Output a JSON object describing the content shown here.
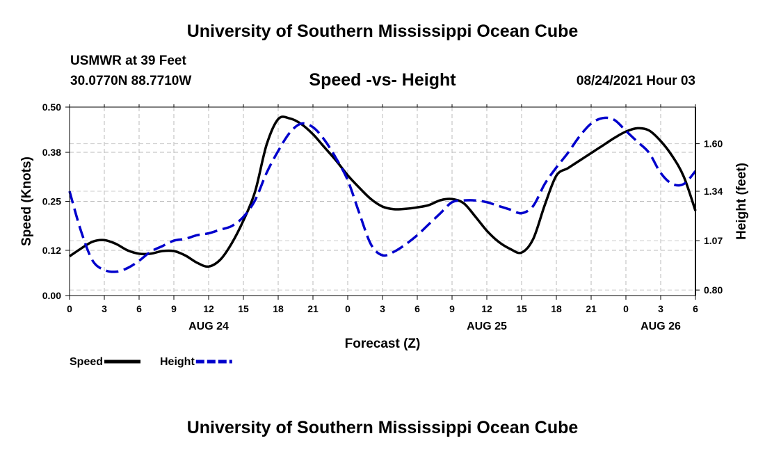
{
  "header": {
    "title": "University of Southern Mississippi Ocean Cube",
    "station": "USMWR at 39 Feet",
    "coords": "30.0770N  88.7710W",
    "subtitle": "Speed -vs- Height",
    "datetime": "08/24/2021 Hour 03"
  },
  "footer": {
    "title": "University of Southern Mississippi Ocean Cube"
  },
  "chart_data": {
    "type": "line",
    "title": "Speed -vs- Height",
    "xlabel": "Forecast (Z)",
    "ylabel_left": "Speed (Knots)",
    "ylabel_right": "Height (feet)",
    "ylim_left": [
      0,
      0.5
    ],
    "ylim_right": [
      0.77,
      1.8
    ],
    "grid": true,
    "x_hours": [
      0,
      3,
      6,
      9,
      12,
      15,
      18,
      21,
      24,
      27,
      30,
      33,
      36,
      39,
      42,
      45,
      48,
      51,
      54
    ],
    "x_tick_labels": [
      "0",
      "3",
      "6",
      "9",
      "12",
      "15",
      "18",
      "21",
      "0",
      "3",
      "6",
      "9",
      "12",
      "15",
      "18",
      "21",
      "0",
      "3",
      "6"
    ],
    "date_labels": [
      {
        "hour": 12,
        "label": "AUG 24"
      },
      {
        "hour": 36,
        "label": "AUG 25"
      },
      {
        "hour": 51,
        "label": "AUG 26"
      }
    ],
    "left_ticks": [
      0.0,
      0.12,
      0.25,
      0.38,
      0.5
    ],
    "left_tick_labels": [
      "0.00",
      "0.12",
      "0.25",
      "0.38",
      "0.50"
    ],
    "right_ticks": [
      0.8,
      1.07,
      1.34,
      1.6
    ],
    "right_tick_labels": [
      "0.80",
      "1.07",
      "1.34",
      "1.60"
    ],
    "series": [
      {
        "name": "Speed",
        "axis": "left",
        "color": "#000000",
        "dash": "solid",
        "points": [
          [
            0,
            0.104
          ],
          [
            1,
            0.125
          ],
          [
            2,
            0.143
          ],
          [
            3,
            0.147
          ],
          [
            4,
            0.137
          ],
          [
            5,
            0.12
          ],
          [
            6,
            0.111
          ],
          [
            7,
            0.111
          ],
          [
            8,
            0.118
          ],
          [
            9,
            0.118
          ],
          [
            10,
            0.106
          ],
          [
            11,
            0.087
          ],
          [
            12,
            0.077
          ],
          [
            13,
            0.095
          ],
          [
            14,
            0.139
          ],
          [
            15,
            0.199
          ],
          [
            16,
            0.275
          ],
          [
            17,
            0.4
          ],
          [
            18,
            0.468
          ],
          [
            19,
            0.47
          ],
          [
            20,
            0.455
          ],
          [
            21,
            0.428
          ],
          [
            22,
            0.393
          ],
          [
            23,
            0.358
          ],
          [
            24,
            0.319
          ],
          [
            25,
            0.286
          ],
          [
            26,
            0.256
          ],
          [
            27,
            0.236
          ],
          [
            28,
            0.229
          ],
          [
            29,
            0.23
          ],
          [
            30,
            0.234
          ],
          [
            31,
            0.24
          ],
          [
            32,
            0.253
          ],
          [
            33,
            0.256
          ],
          [
            34,
            0.245
          ],
          [
            35,
            0.21
          ],
          [
            36,
            0.172
          ],
          [
            37,
            0.143
          ],
          [
            38,
            0.124
          ],
          [
            39,
            0.114
          ],
          [
            40,
            0.15
          ],
          [
            41,
            0.24
          ],
          [
            42,
            0.318
          ],
          [
            43,
            0.338
          ],
          [
            44,
            0.358
          ],
          [
            45,
            0.378
          ],
          [
            46,
            0.398
          ],
          [
            47,
            0.418
          ],
          [
            48,
            0.435
          ],
          [
            49,
            0.444
          ],
          [
            50,
            0.438
          ],
          [
            51,
            0.41
          ],
          [
            52,
            0.37
          ],
          [
            53,
            0.315
          ],
          [
            54,
            0.225
          ]
        ]
      },
      {
        "name": "Height",
        "axis": "right",
        "color": "#0000cc",
        "dash": "dashed",
        "points": [
          [
            0,
            1.34
          ],
          [
            1,
            1.12
          ],
          [
            2,
            0.96
          ],
          [
            3,
            0.91
          ],
          [
            4,
            0.9
          ],
          [
            5,
            0.92
          ],
          [
            6,
            0.96
          ],
          [
            7,
            1.01
          ],
          [
            8,
            1.04
          ],
          [
            9,
            1.07
          ],
          [
            10,
            1.08
          ],
          [
            11,
            1.1
          ],
          [
            12,
            1.11
          ],
          [
            13,
            1.13
          ],
          [
            14,
            1.15
          ],
          [
            15,
            1.2
          ],
          [
            16,
            1.29
          ],
          [
            17,
            1.44
          ],
          [
            18,
            1.56
          ],
          [
            19,
            1.66
          ],
          [
            20,
            1.71
          ],
          [
            21,
            1.69
          ],
          [
            22,
            1.62
          ],
          [
            23,
            1.52
          ],
          [
            24,
            1.4
          ],
          [
            25,
            1.22
          ],
          [
            26,
            1.05
          ],
          [
            27,
            0.99
          ],
          [
            28,
            1.01
          ],
          [
            29,
            1.05
          ],
          [
            30,
            1.1
          ],
          [
            31,
            1.16
          ],
          [
            32,
            1.22
          ],
          [
            33,
            1.28
          ],
          [
            34,
            1.29
          ],
          [
            35,
            1.29
          ],
          [
            36,
            1.28
          ],
          [
            37,
            1.26
          ],
          [
            38,
            1.24
          ],
          [
            39,
            1.22
          ],
          [
            40,
            1.26
          ],
          [
            41,
            1.38
          ],
          [
            42,
            1.47
          ],
          [
            43,
            1.55
          ],
          [
            44,
            1.64
          ],
          [
            45,
            1.71
          ],
          [
            46,
            1.74
          ],
          [
            47,
            1.73
          ],
          [
            48,
            1.67
          ],
          [
            49,
            1.61
          ],
          [
            50,
            1.55
          ],
          [
            51,
            1.44
          ],
          [
            52,
            1.38
          ],
          [
            53,
            1.38
          ],
          [
            54,
            1.45
          ]
        ]
      }
    ],
    "legend": {
      "placement": "bottom-left",
      "items": [
        {
          "label": "Speed",
          "color": "#000000",
          "dash": "solid"
        },
        {
          "label": "Height",
          "color": "#0000cc",
          "dash": "dashed"
        }
      ]
    }
  }
}
